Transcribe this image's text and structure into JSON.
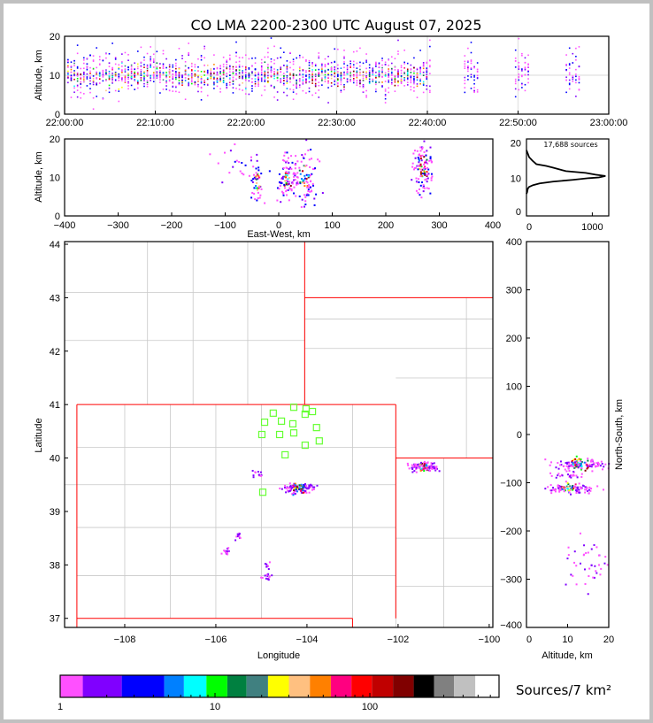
{
  "chart_data": {
    "type": "scatter",
    "title": "CO LMA 2200-2300 UTC August 07, 2025",
    "time_panel": {
      "ylabel": "Altitude, km",
      "ylim": [
        0,
        20
      ],
      "yticks": [
        "0",
        "10",
        "20"
      ],
      "xlim_minutes": [
        0,
        60
      ],
      "xticks": [
        "22:00:00",
        "22:10:00",
        "22:20:00",
        "22:30:00",
        "22:40:00",
        "22:50:00",
        "23:00:00"
      ]
    },
    "ew_panel": {
      "xlabel": "East-West, km",
      "ylabel": "Altitude, km",
      "xlim": [
        -400,
        400
      ],
      "ylim": [
        0,
        20
      ],
      "xticks": [
        "−400",
        "−300",
        "−200",
        "−100",
        "0",
        "100",
        "200",
        "300",
        "400"
      ],
      "yticks": [
        "0",
        "10",
        "20"
      ],
      "clusters": [
        {
          "x": -41,
          "alt": 9,
          "sx": 6,
          "sa": 3,
          "n": 40
        },
        {
          "x": 15,
          "alt": 10,
          "sx": 10,
          "sa": 3,
          "n": 90
        },
        {
          "x": 45,
          "alt": 10.5,
          "sx": 12,
          "sa": 3.5,
          "n": 90
        },
        {
          "x": 268,
          "alt": 13,
          "sx": 9,
          "sa": 3.5,
          "n": 110
        },
        {
          "x": -75,
          "alt": 15,
          "sx": 25,
          "sa": 3,
          "n": 25
        }
      ]
    },
    "histogram": {
      "annotation": "17,688 sources",
      "xticks": [
        "0",
        "1000"
      ],
      "yticks": [
        "0",
        "10",
        "20"
      ],
      "xlim": [
        0,
        1250
      ],
      "ylim": [
        -0.8,
        21.2
      ],
      "profile": [
        [
          18,
          0
        ],
        [
          17,
          20
        ],
        [
          16,
          40
        ],
        [
          15,
          90
        ],
        [
          14,
          150
        ],
        [
          13.5,
          300
        ],
        [
          13,
          400
        ],
        [
          12,
          600
        ],
        [
          11.5,
          900
        ],
        [
          11,
          1050
        ],
        [
          10.6,
          1200
        ],
        [
          10.2,
          1100
        ],
        [
          10,
          950
        ],
        [
          9.5,
          700
        ],
        [
          9,
          400
        ],
        [
          8.5,
          200
        ],
        [
          8,
          100
        ],
        [
          7.5,
          40
        ],
        [
          7,
          20
        ],
        [
          6,
          10
        ],
        [
          5.5,
          0
        ]
      ]
    },
    "map_panel": {
      "xlabel": "Longitude",
      "ylabel": "Latitude",
      "xlim": [
        -109.32,
        -99.92
      ],
      "ylim": [
        36.83,
        44.05
      ],
      "xticks": [
        {
          "v": -108,
          "t": "−108"
        },
        {
          "v": -106,
          "t": "−106"
        },
        {
          "v": -104,
          "t": "−104"
        },
        {
          "v": -102,
          "t": "−102"
        },
        {
          "v": -100,
          "t": "−100"
        }
      ],
      "yticks": [
        {
          "v": 37,
          "t": "37"
        },
        {
          "v": 38,
          "t": "38"
        },
        {
          "v": 39,
          "t": "39"
        },
        {
          "v": 40,
          "t": "40"
        },
        {
          "v": 41,
          "t": "41"
        },
        {
          "v": 42,
          "t": "42"
        },
        {
          "v": 43,
          "t": "43"
        },
        {
          "v": 44,
          "t": "44"
        }
      ],
      "stations": [
        [
          -104.93,
          40.67
        ],
        [
          -104.74,
          40.84
        ],
        [
          -104.56,
          40.69
        ],
        [
          -104.29,
          40.95
        ],
        [
          -104.02,
          40.92
        ],
        [
          -103.88,
          40.87
        ],
        [
          -104.04,
          40.82
        ],
        [
          -104.31,
          40.64
        ],
        [
          -103.79,
          40.57
        ],
        [
          -104.6,
          40.44
        ],
        [
          -104.29,
          40.47
        ],
        [
          -104.99,
          40.44
        ],
        [
          -104.04,
          40.24
        ],
        [
          -103.73,
          40.32
        ],
        [
          -104.48,
          40.06
        ],
        [
          -104.97,
          39.36
        ]
      ],
      "clusters": [
        {
          "lon": -104.2,
          "lat": 39.45,
          "sx": 0.18,
          "sy": 0.05,
          "n": 120
        },
        {
          "lon": -101.45,
          "lat": 39.86,
          "sx": 0.15,
          "sy": 0.05,
          "n": 110
        },
        {
          "lon": -105.5,
          "lat": 38.55,
          "sx": 0.04,
          "sy": 0.04,
          "n": 12
        },
        {
          "lon": -105.8,
          "lat": 38.27,
          "sx": 0.06,
          "sy": 0.03,
          "n": 15
        },
        {
          "lon": -104.9,
          "lat": 37.8,
          "sx": 0.06,
          "sy": 0.03,
          "n": 14
        },
        {
          "lon": -104.87,
          "lat": 38.03,
          "sx": 0.03,
          "sy": 0.03,
          "n": 8
        },
        {
          "lon": -105.1,
          "lat": 39.71,
          "sx": 0.05,
          "sy": 0.04,
          "n": 12
        }
      ]
    },
    "ns_panel": {
      "xlabel": "Altitude, km",
      "ylabel": "North-South, km",
      "xlim": [
        0,
        20
      ],
      "ylim": [
        -400,
        400
      ],
      "xticks": [
        "0",
        "10",
        "20"
      ],
      "yticks": [
        "−400",
        "−300",
        "−200",
        "−100",
        "0",
        "100",
        "200",
        "300",
        "400"
      ],
      "clusters": [
        {
          "alt": 13,
          "y": -60,
          "sa": 3.5,
          "sy": 6,
          "n": 130
        },
        {
          "alt": 10,
          "y": -110,
          "sa": 3,
          "sy": 5,
          "n": 110
        },
        {
          "alt": 14,
          "y": -260,
          "sa": 3,
          "sy": 30,
          "n": 40
        },
        {
          "alt": 10,
          "y": -82,
          "sa": 2,
          "sy": 5,
          "n": 25
        }
      ]
    },
    "colorbar": {
      "label": "Sources/7 km²",
      "ticks": [
        {
          "v": 1,
          "t": "1"
        },
        {
          "v": 10,
          "t": "10"
        },
        {
          "v": 100,
          "t": "100"
        }
      ],
      "bounds": [
        1,
        1.4,
        2.5,
        4.7,
        6.3,
        8.8,
        12,
        16,
        22,
        30,
        41,
        56,
        76,
        103,
        141,
        192,
        260,
        350,
        480,
        682
      ],
      "colors": [
        "#ff50ff",
        "#8000ff",
        "#0000ff",
        "#0080ff",
        "#00ffff",
        "#00ff00",
        "#008040",
        "#408080",
        "#ffff00",
        "#ffc080",
        "#ff8000",
        "#ff0080",
        "#ff0000",
        "#c00000",
        "#800000",
        "#000000",
        "#808080",
        "#c0c0c0",
        "#ffffff"
      ]
    }
  }
}
